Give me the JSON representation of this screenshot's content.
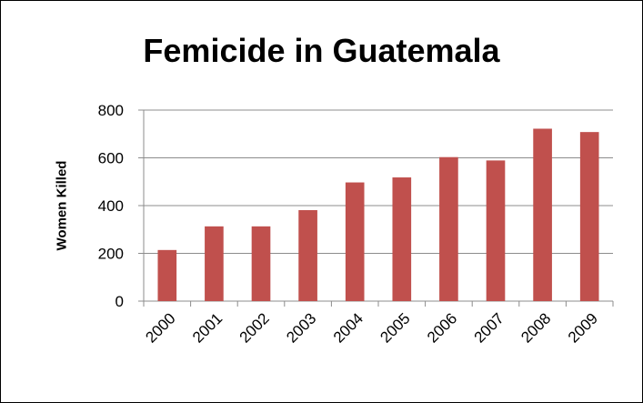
{
  "chart_data": {
    "type": "bar",
    "title": "Femicide in Guatemala",
    "xlabel": "",
    "ylabel": "Women Killed",
    "categories": [
      "2000",
      "2001",
      "2002",
      "2003",
      "2004",
      "2005",
      "2006",
      "2007",
      "2008",
      "2009"
    ],
    "series": [
      {
        "values": [
          214,
          313,
          313,
          381,
          497,
          518,
          603,
          589,
          722,
          708
        ]
      }
    ],
    "ylim": [
      0,
      800
    ],
    "yticks": [
      "0",
      "200",
      "400",
      "600",
      "800"
    ],
    "grid": true,
    "legend": "none",
    "bar_color": "#C0504D",
    "grid_color": "#8C8C8C"
  }
}
